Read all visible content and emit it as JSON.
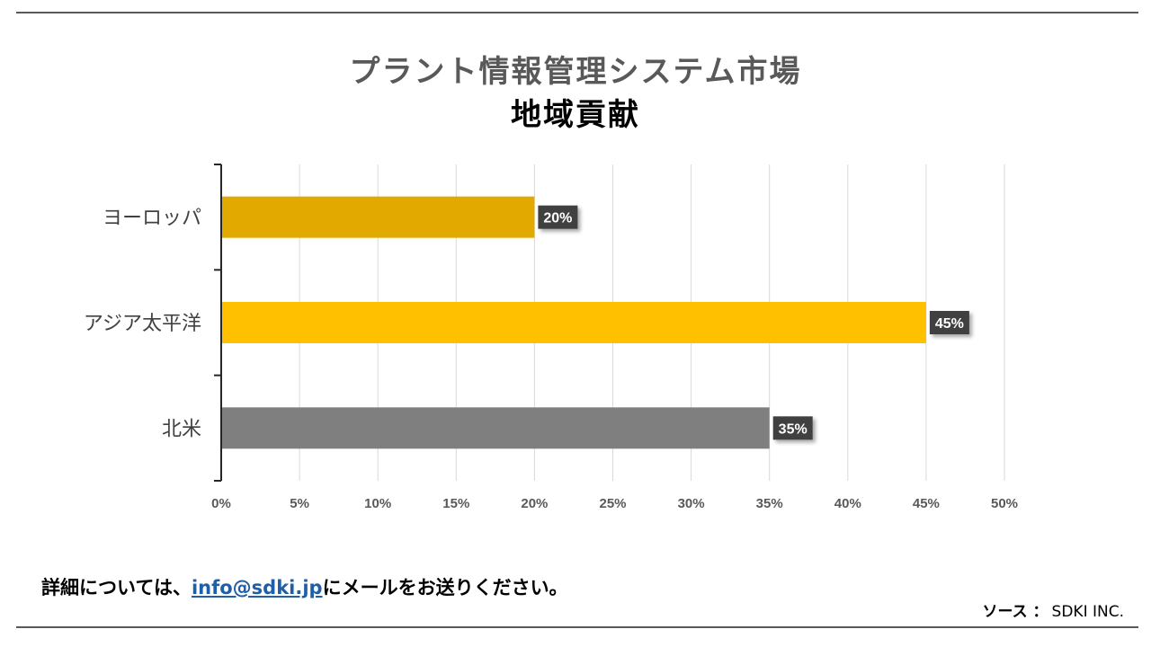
{
  "title_line1": "プラント情報管理システム市場",
  "title_line2": "地域貢献",
  "footer": {
    "prefix": "詳細については、",
    "email": "info@sdki.jp",
    "suffix": "にメールをお送りください。"
  },
  "source": {
    "label": "ソース ：",
    "value": "SDKI INC."
  },
  "chart_data": {
    "type": "bar",
    "orientation": "horizontal",
    "categories": [
      "ヨーロッパ",
      "アジア太平洋",
      "北米"
    ],
    "values": [
      20,
      45,
      35
    ],
    "data_labels": [
      "20%",
      "45%",
      "35%"
    ],
    "bar_colors": [
      "#E2AA00",
      "#FFC000",
      "#7F7F7F"
    ],
    "xlim": [
      0,
      50
    ],
    "x_ticks": [
      0,
      5,
      10,
      15,
      20,
      25,
      30,
      35,
      40,
      45,
      50
    ],
    "x_tick_labels": [
      "0%",
      "5%",
      "10%",
      "15%",
      "20%",
      "25%",
      "30%",
      "35%",
      "40%",
      "45%",
      "50%"
    ],
    "grid": true,
    "legend": "none"
  }
}
